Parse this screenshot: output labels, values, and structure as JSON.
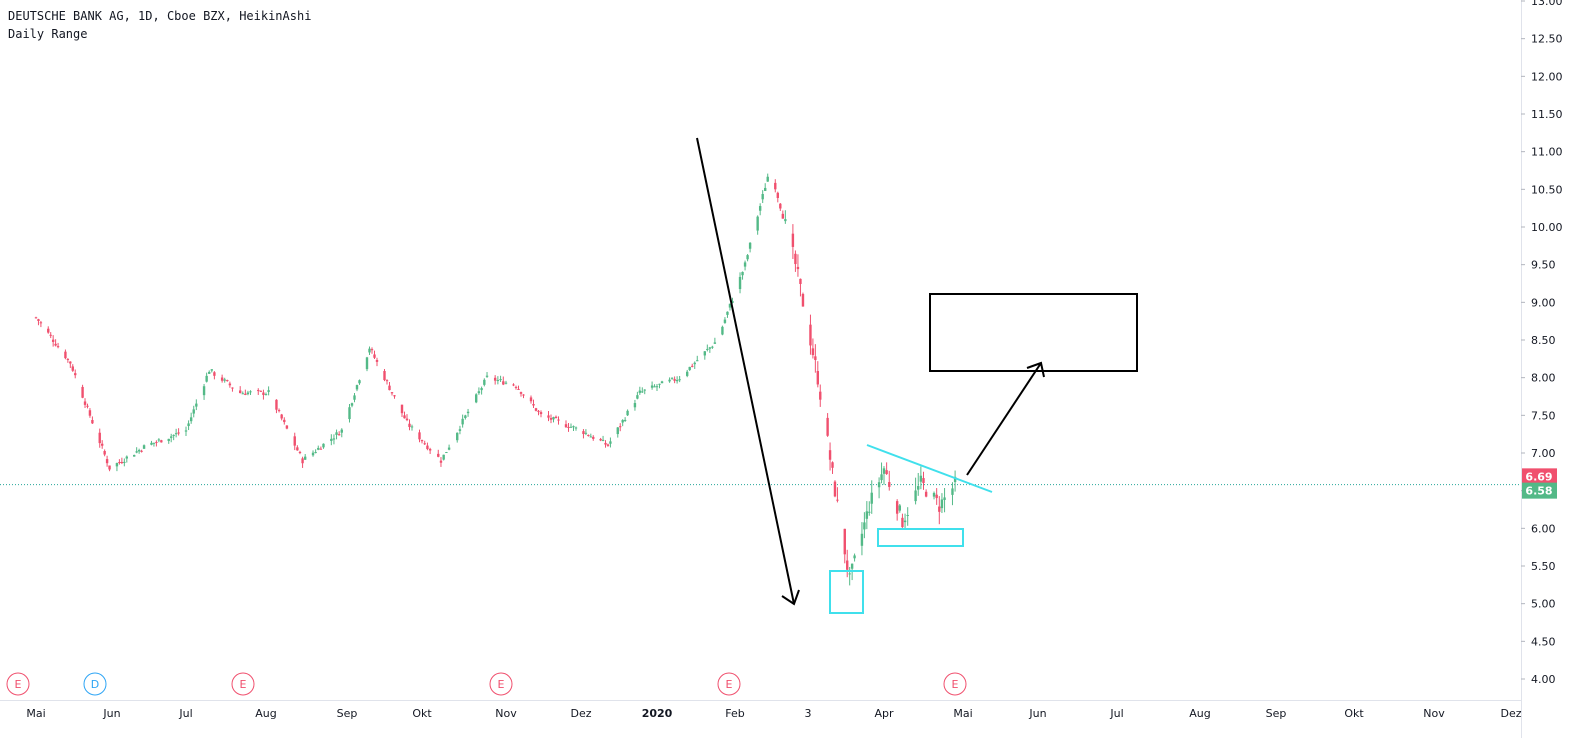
{
  "header": {
    "symbol_line": "DEUTSCHE BANK AG, 1D, Cboe BZX, HeikinAshi",
    "indicator_line": "Daily Range"
  },
  "colors": {
    "up": "#53b987",
    "down": "#f0506e",
    "drawing": "#000000",
    "highlight": "#40e0ec",
    "last_price_line": "#26a69a",
    "event_earnings": "#f0506e",
    "event_dividend": "#2ea5f5"
  },
  "price_labels": {
    "last": "6.69",
    "prev_close": "6.58"
  },
  "events": [
    {
      "type": "E",
      "name": "earnings"
    },
    {
      "type": "D",
      "name": "dividend"
    },
    {
      "type": "E",
      "name": "earnings"
    },
    {
      "type": "E",
      "name": "earnings"
    },
    {
      "type": "E",
      "name": "earnings"
    },
    {
      "type": "E",
      "name": "earnings"
    }
  ],
  "chart_data": {
    "type": "candlestick",
    "style": "HeikinAshi",
    "y_range": [
      3.85,
      13.2
    ],
    "y_ticks": [
      "4.00",
      "4.50",
      "5.00",
      "5.50",
      "6.00",
      "6.50",
      "7.00",
      "7.50",
      "8.00",
      "8.50",
      "9.00",
      "9.50",
      "10.00",
      "10.50",
      "11.00",
      "11.50",
      "12.00",
      "12.50",
      "13.00"
    ],
    "x_tick_labels": [
      "Mai",
      "Jun",
      "Jul",
      "Aug",
      "Sep",
      "Okt",
      "Nov",
      "Dez",
      "2020",
      "Feb",
      "3",
      "Apr",
      "Mai",
      "Jun",
      "Jul",
      "Aug",
      "Sep",
      "Okt",
      "Nov",
      "Dez"
    ],
    "price_path_anchors": [
      [
        "2019-05-01",
        8.8
      ],
      [
        "2019-05-15",
        8.2
      ],
      [
        "2019-05-31",
        6.8
      ],
      [
        "2019-06-15",
        7.1
      ],
      [
        "2019-07-01",
        7.3
      ],
      [
        "2019-07-10",
        8.1
      ],
      [
        "2019-07-22",
        7.8
      ],
      [
        "2019-08-02",
        7.8
      ],
      [
        "2019-08-15",
        6.9
      ],
      [
        "2019-08-30",
        7.3
      ],
      [
        "2019-09-10",
        8.4
      ],
      [
        "2019-09-25",
        7.4
      ],
      [
        "2019-10-08",
        6.9
      ],
      [
        "2019-10-25",
        8.0
      ],
      [
        "2019-11-05",
        7.9
      ],
      [
        "2019-11-15",
        7.5
      ],
      [
        "2019-12-01",
        7.3
      ],
      [
        "2019-12-12",
        7.1
      ],
      [
        "2019-12-25",
        7.8
      ],
      [
        "2020-01-10",
        8.0
      ],
      [
        "2020-01-25",
        8.5
      ],
      [
        "2020-02-05",
        9.5
      ],
      [
        "2020-02-15",
        10.8
      ],
      [
        "2020-02-25",
        9.5
      ],
      [
        "2020-03-05",
        8.0
      ],
      [
        "2020-03-12",
        6.5
      ],
      [
        "2020-03-18",
        5.3
      ],
      [
        "2020-03-26",
        6.3
      ],
      [
        "2020-04-01",
        6.8
      ],
      [
        "2020-04-08",
        6.1
      ],
      [
        "2020-04-15",
        6.6
      ],
      [
        "2020-04-22",
        6.3
      ],
      [
        "2020-04-28",
        6.58
      ]
    ]
  }
}
